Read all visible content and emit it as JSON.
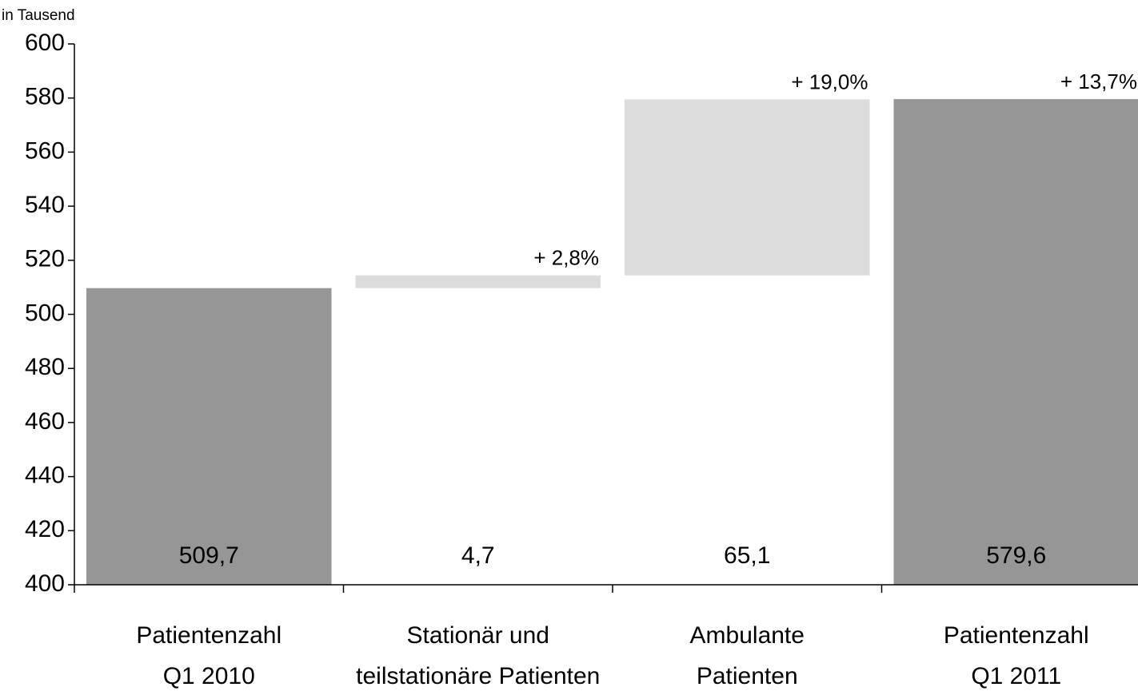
{
  "chart_data": {
    "type": "waterfall",
    "y_label": "in Tausend",
    "categories": [
      [
        "Patientenzahl",
        "Q1 2010"
      ],
      [
        "Stationär und",
        "teilstationäre Patienten"
      ],
      [
        "Ambulante",
        "Patienten"
      ],
      [
        "Patientenzahl",
        "Q1 2011"
      ]
    ],
    "kinds": [
      "total",
      "delta",
      "delta",
      "total"
    ],
    "values": [
      509.7,
      4.7,
      65.1,
      579.6
    ],
    "value_labels": [
      "509,7",
      "4,7",
      "65,1",
      "579,6"
    ],
    "percent_labels": [
      null,
      "+ 2,8%",
      "+ 19,0%",
      "+ 13,7%"
    ],
    "colors": {
      "total": "#969696",
      "delta": "#dcdcdc"
    },
    "ylim": [
      400,
      600
    ],
    "yticks": [
      400,
      420,
      440,
      460,
      480,
      500,
      520,
      540,
      560,
      580,
      600
    ]
  }
}
